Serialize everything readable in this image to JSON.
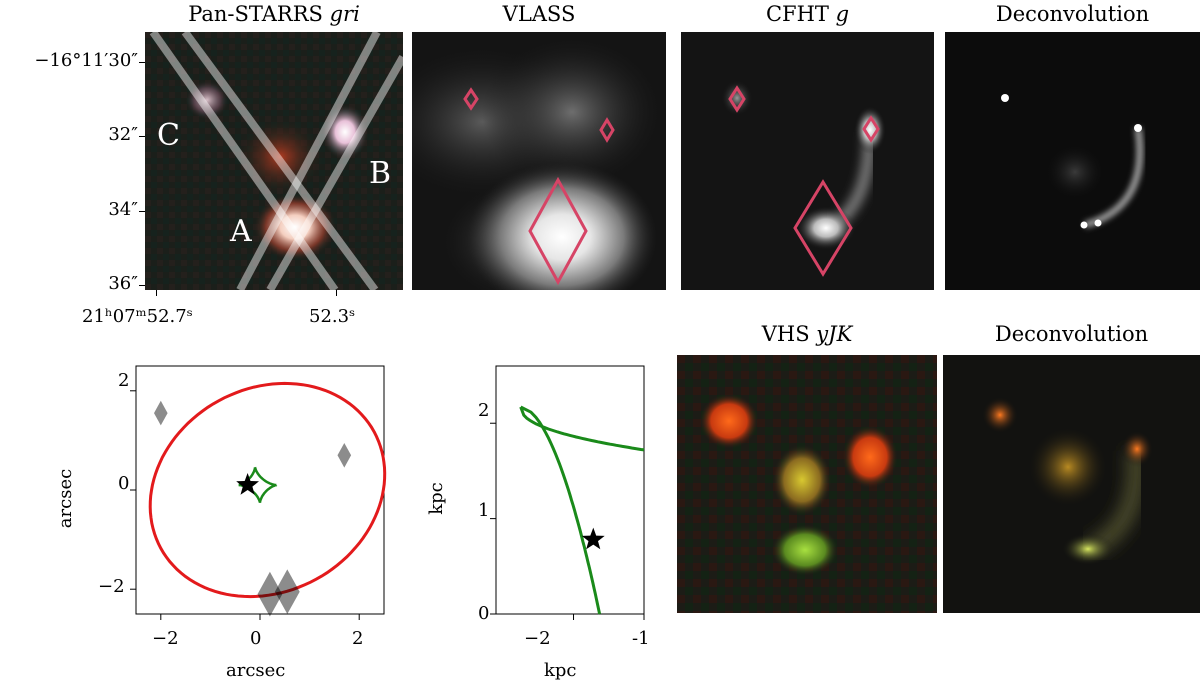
{
  "panels": {
    "ps": {
      "title": "Pan-STARRS ",
      "title_em": "gri",
      "dec_ticks": [
        "−16°11′30″",
        "32″",
        "34″",
        "36″"
      ],
      "ra_ticks": [
        "21ʰ07ᵐ52.7ˢ",
        "52.3ˢ"
      ],
      "letters": {
        "a": "A",
        "b": "B",
        "c": "C"
      }
    },
    "vlass": {
      "title": "VLASS"
    },
    "cfht": {
      "title": "CFHT ",
      "title_em": "g"
    },
    "deconv1": {
      "title": "Deconvolution"
    },
    "vhs": {
      "title": "VHS ",
      "title_em": "yJK"
    },
    "deconv2": {
      "title": "Deconvolution"
    }
  },
  "chart_data": [
    {
      "type": "scatter",
      "name": "image-plane-model",
      "xlabel": "arcsec",
      "ylabel": "arcsec",
      "xlim": [
        -2.5,
        2.5
      ],
      "ylim": [
        -2.5,
        2.5
      ],
      "xticks": [
        "−2",
        "0",
        "2"
      ],
      "yticks": [
        "−2",
        "0",
        "2"
      ],
      "images": [
        {
          "x": -2.0,
          "y": 1.55
        },
        {
          "x": 1.7,
          "y": 0.7
        },
        {
          "x": 0.2,
          "y": -2.1
        },
        {
          "x": 0.55,
          "y": -2.05
        }
      ],
      "source": {
        "x": -0.25,
        "y": 0.1
      },
      "critical_curve_color": "#e31a1c",
      "caustic_color": "#1a8a1a"
    },
    {
      "type": "line",
      "name": "source-plane-caustic",
      "xlabel": "kpc",
      "ylabel": "kpc",
      "xlim": [
        -3.1,
        -1.0
      ],
      "ylim": [
        0,
        2.6
      ],
      "xticks": [
        "−2",
        "-1"
      ],
      "yticks": [
        "0",
        "1",
        "2"
      ],
      "source": {
        "x": -1.72,
        "y": 0.78
      },
      "caustic_color": "#1a8a1a"
    }
  ]
}
